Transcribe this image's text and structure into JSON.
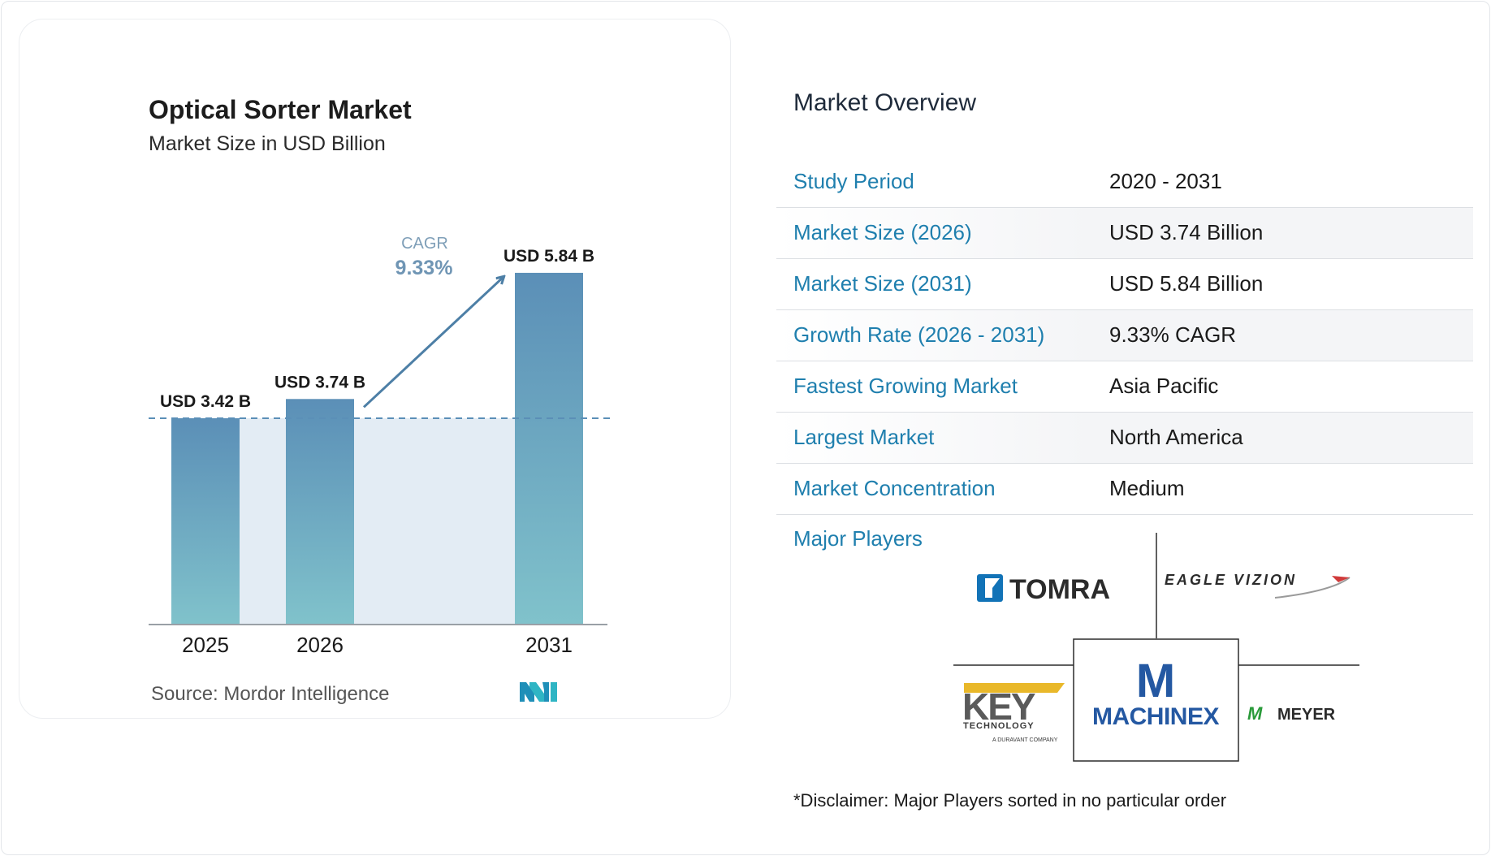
{
  "chart_data": {
    "type": "bar",
    "title": "Optical Sorter Market",
    "subtitle": "Market Size in USD Billion",
    "categories": [
      "2025",
      "2026",
      "2031"
    ],
    "values": [
      3.42,
      3.74,
      5.84
    ],
    "value_labels": [
      "USD 3.42 B",
      "USD 3.74 B",
      "USD 5.84 B"
    ],
    "xlabel": "",
    "ylabel": "",
    "ylim": [
      0,
      6.15
    ],
    "grid": false,
    "annotation": {
      "label": "CAGR",
      "value": "9.33%"
    },
    "bar_color_top": "#5b8fb7",
    "bar_color_bottom": "#80c2cb",
    "band_color": "#e3ecf4",
    "arrow_color": "#4d7fa6"
  },
  "source": "Source:  Mordor Intelligence",
  "overview": {
    "title": "Market Overview",
    "rows": [
      {
        "label": "Study Period",
        "value": "2020 - 2031"
      },
      {
        "label": "Market Size (2026)",
        "value": "USD 3.74 Billion"
      },
      {
        "label": "Market Size (2031)",
        "value": "USD 5.84 Billion"
      },
      {
        "label": "Growth Rate (2026 - 2031)",
        "value": "9.33% CAGR"
      },
      {
        "label": "Fastest Growing Market",
        "value": "Asia Pacific"
      },
      {
        "label": "Largest Market",
        "value": "North America"
      },
      {
        "label": "Market Concentration",
        "value": "Medium"
      }
    ],
    "accent_color": "#1f7fae"
  },
  "players": {
    "label": "Major Players",
    "logos": {
      "tomra": "TOMRA",
      "eagle": "EAGLE VIZION",
      "key": "KEY",
      "key_sub": "TECHNOLOGY",
      "key_sub2": "A DURAVANT COMPANY",
      "machinex_m": "M",
      "machinex": "MACHINEX",
      "meyer_mark": "M",
      "meyer": "MEYER"
    },
    "disclaimer": "*Disclaimer: Major Players sorted in no particular order"
  }
}
